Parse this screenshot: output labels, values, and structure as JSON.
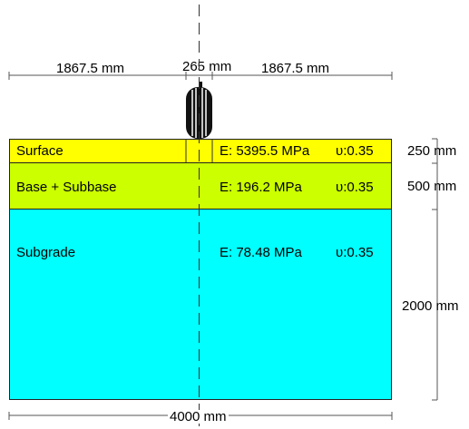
{
  "top_dimensions": {
    "left": "1867.5 mm",
    "center": "265 mm",
    "right": "1867.5 mm"
  },
  "layers": [
    {
      "name": "Surface",
      "modulus": "E: 5395.5 MPa",
      "poisson": "υ:0.35",
      "thickness": "250 mm",
      "color": "#ffff00"
    },
    {
      "name": "Base + Subbase",
      "modulus": "E: 196.2 MPa",
      "poisson": "υ:0.35",
      "thickness": "500 mm",
      "color": "#ccff00"
    },
    {
      "name": "Subgrade",
      "modulus": "E: 78.48 MPa",
      "poisson": "υ:0.35",
      "thickness": "2000 mm",
      "color": "#00ffff"
    }
  ],
  "bottom_dimension": "4000 mm",
  "icons": [
    "tire-icon"
  ]
}
